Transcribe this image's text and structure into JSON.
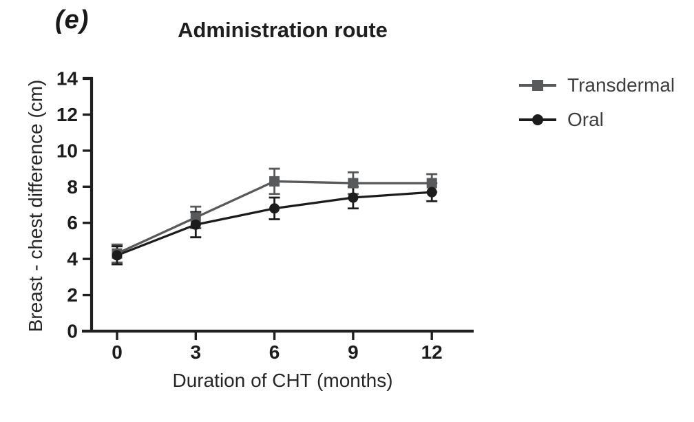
{
  "figure": {
    "panel_label": "(e)",
    "title": "Administration route"
  },
  "chart_data": {
    "type": "line",
    "x": [
      0,
      3,
      6,
      9,
      12
    ],
    "xlabel": "Duration of CHT (months)",
    "ylabel": "Breast - chest difference (cm)",
    "xlim": [
      0,
      13.5
    ],
    "ylim": [
      0,
      14
    ],
    "xticks": [
      0,
      3,
      6,
      9,
      12
    ],
    "yticks": [
      0,
      2,
      4,
      6,
      8,
      10,
      12,
      14
    ],
    "grid": false,
    "legend_position": "right",
    "error_bars": true,
    "series": [
      {
        "name": "Transdermal",
        "marker": "square",
        "color": "#58595b",
        "values": [
          4.3,
          6.3,
          8.3,
          8.2,
          8.2
        ],
        "errors": [
          0.5,
          0.6,
          0.7,
          0.6,
          0.5
        ]
      },
      {
        "name": "Oral",
        "marker": "circle",
        "color": "#1c1c1c",
        "values": [
          4.2,
          5.9,
          6.8,
          7.4,
          7.7
        ],
        "errors": [
          0.5,
          0.7,
          0.6,
          0.6,
          0.5
        ]
      }
    ]
  },
  "colors": {
    "axis": "#1f1f1f",
    "background": "#ffffff",
    "legend_text": "#3d3d3d"
  }
}
